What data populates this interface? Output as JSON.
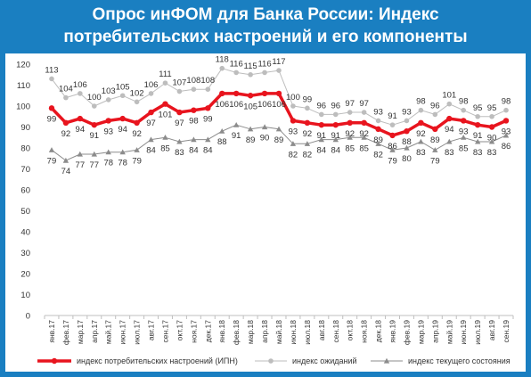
{
  "title_line1": "Опрос инФОМ для Банка России: Индекс",
  "title_line2": "потребительских настроений и его компоненты",
  "chart_data": {
    "type": "line",
    "ylim": [
      0,
      120
    ],
    "yticks": [
      0,
      10,
      20,
      30,
      40,
      50,
      60,
      70,
      80,
      90,
      100,
      110,
      120
    ],
    "categories": [
      "янв.17",
      "фев.17",
      "мар.17",
      "апр.17",
      "май.17",
      "июн.17",
      "июл.17",
      "авг.17",
      "сен.17",
      "окт.17",
      "ноя.17",
      "дек.17",
      "янв.18",
      "фев.18",
      "мар.18",
      "апр.18",
      "май.18",
      "июн.18",
      "июл.18",
      "авг.18",
      "сен.18",
      "окт.18",
      "ноя.18",
      "дек.18",
      "янв.19",
      "фев.19",
      "мар.19",
      "апр.19",
      "май.19",
      "июн.19",
      "июл.19",
      "авг.19",
      "сен.19"
    ],
    "series": [
      {
        "name": "индекс потребительских настроений (ИПН)",
        "color": "#e8141e",
        "values": [
          99,
          92,
          94,
          91,
          93,
          94,
          92,
          97,
          101,
          97,
          98,
          99,
          106,
          106,
          105,
          106,
          106,
          93,
          92,
          91,
          91,
          92,
          92,
          89,
          86,
          88,
          92,
          89,
          94,
          93,
          91,
          90,
          93
        ]
      },
      {
        "name": "индекс ожиданий",
        "color": "#bdbdbd",
        "values": [
          113,
          104,
          106,
          100,
          103,
          105,
          102,
          106,
          111,
          107,
          108,
          108,
          118,
          116,
          115,
          116,
          117,
          100,
          99,
          96,
          96,
          97,
          97,
          93,
          91,
          93,
          98,
          96,
          101,
          98,
          95,
          95,
          98
        ]
      },
      {
        "name": "индекс текущего состояния",
        "color": "#8c8c8c",
        "values": [
          79,
          74,
          77,
          77,
          78,
          78,
          79,
          84,
          85,
          83,
          84,
          84,
          88,
          91,
          89,
          90,
          89,
          82,
          82,
          84,
          84,
          85,
          85,
          82,
          79,
          80,
          83,
          79,
          83,
          85,
          83,
          83,
          86
        ]
      }
    ]
  }
}
